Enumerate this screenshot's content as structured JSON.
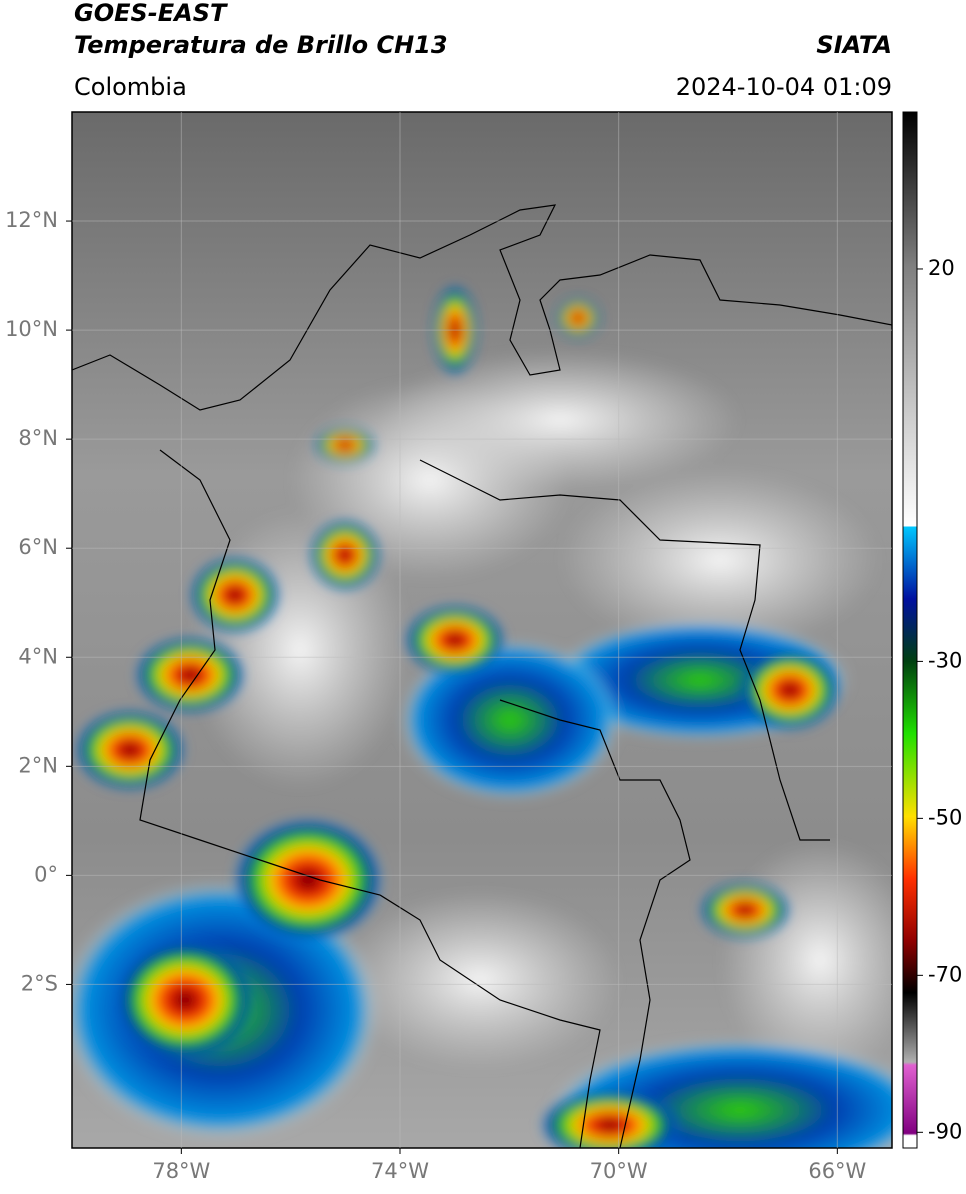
{
  "header": {
    "satellite": "GOES-EAST",
    "product": "Temperatura de Brillo CH13",
    "source": "SIATA",
    "region": "Colombia",
    "datetime": "2024-10-04 01:09"
  },
  "map": {
    "lonlim": [
      -80,
      -65
    ],
    "latlim": [
      -5,
      14
    ],
    "lon_ticks": [
      {
        "value": -78,
        "label": "78°W"
      },
      {
        "value": -74,
        "label": "74°W"
      },
      {
        "value": -70,
        "label": "70°W"
      },
      {
        "value": -66,
        "label": "66°W"
      }
    ],
    "lat_ticks": [
      {
        "value": 12,
        "label": "12°N"
      },
      {
        "value": 10,
        "label": "10°N"
      },
      {
        "value": 8,
        "label": "8°N"
      },
      {
        "value": 6,
        "label": "6°N"
      },
      {
        "value": 4,
        "label": "4°N"
      },
      {
        "value": 2,
        "label": "2°N"
      },
      {
        "value": 0,
        "label": "0°"
      },
      {
        "value": -2,
        "label": "2°S"
      }
    ],
    "grid": true
  },
  "colorbar": {
    "lim": [
      -92,
      40
    ],
    "ticks": [
      20,
      -30,
      -50,
      -70,
      -90
    ]
  }
}
